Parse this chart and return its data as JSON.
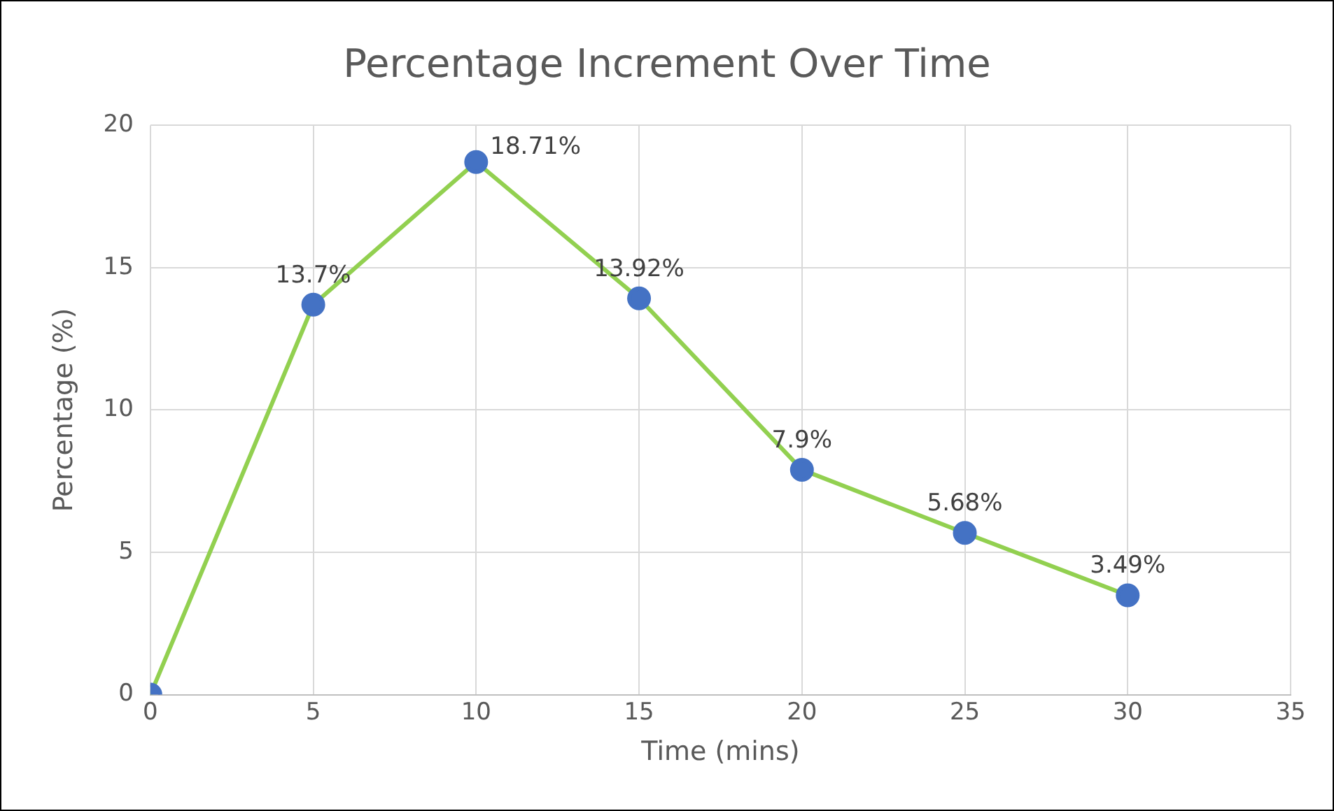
{
  "chart_data": {
    "type": "line",
    "title": "Percentage Increment Over Time",
    "xlabel": "Time (mins)",
    "ylabel": "Percentage (%)",
    "x": [
      0,
      5,
      10,
      15,
      20,
      25,
      30
    ],
    "series": [
      {
        "color": "#92d050",
        "colors": [
          "#4472c4",
          "#4472c4",
          "#4472c4",
          "#4472c4",
          "#4472c4",
          "#4472c4",
          "#4472c4"
        ],
        "values": [
          0,
          13.7,
          18.71,
          13.92,
          7.9,
          5.68,
          3.49
        ],
        "value_labels": [
          null,
          "13.7%",
          "18.71%",
          "13.92%",
          "7.9%",
          "5.68%",
          "3.49%"
        ]
      }
    ],
    "xlim": [
      0,
      35
    ],
    "xticks": [
      0,
      5,
      10,
      15,
      20,
      25,
      30,
      35
    ],
    "ylim": [
      0,
      20
    ],
    "yticks": [
      0,
      5,
      10,
      15,
      20
    ],
    "grid": true,
    "legend": false,
    "marker": "circle",
    "line_style": "solid"
  }
}
